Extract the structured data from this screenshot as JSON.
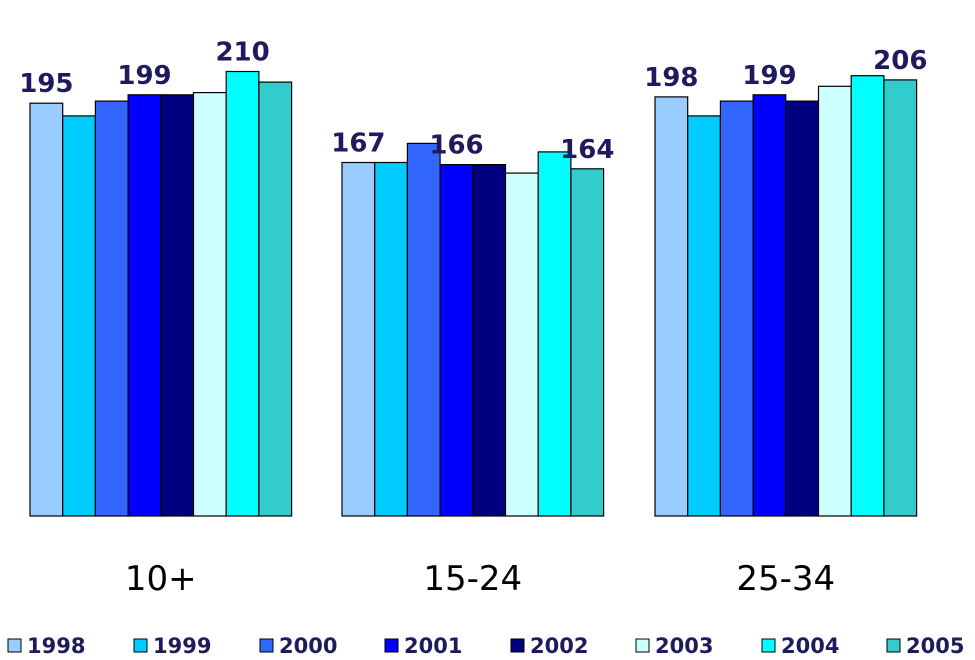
{
  "chart_data": {
    "type": "bar",
    "title": "",
    "xlabel": "",
    "ylabel": "",
    "ylim": [
      0,
      214
    ],
    "grid": false,
    "legend_position": "bottom",
    "categories": [
      "10+",
      "15-24",
      "25-34"
    ],
    "series": [
      {
        "name": "1998",
        "color": "#99ccff",
        "values": [
          195,
          167,
          198
        ]
      },
      {
        "name": "1999",
        "color": "#00ccff",
        "values": [
          189,
          167,
          189
        ]
      },
      {
        "name": "2000",
        "color": "#3366ff",
        "values": [
          196,
          176,
          196
        ]
      },
      {
        "name": "2001",
        "color": "#0000ff",
        "values": [
          199,
          166,
          199
        ]
      },
      {
        "name": "2002",
        "color": "#000080",
        "values": [
          199,
          166,
          196
        ]
      },
      {
        "name": "2003",
        "color": "#ccffff",
        "values": [
          200,
          162,
          203
        ]
      },
      {
        "name": "2004",
        "color": "#00ffff",
        "values": [
          210,
          172,
          208
        ]
      },
      {
        "name": "2005",
        "color": "#33cccc",
        "values": [
          205,
          164,
          206
        ]
      }
    ],
    "data_labels": [
      {
        "category": 0,
        "series": 0,
        "text": "195"
      },
      {
        "category": 0,
        "series": 3,
        "text": "199"
      },
      {
        "category": 0,
        "series": 6,
        "text": "210"
      },
      {
        "category": 1,
        "series": 0,
        "text": "167"
      },
      {
        "category": 1,
        "series": 3,
        "text": "166"
      },
      {
        "category": 1,
        "series": 7,
        "text": "164"
      },
      {
        "category": 2,
        "series": 0,
        "text": "198"
      },
      {
        "category": 2,
        "series": 3,
        "text": "199"
      },
      {
        "category": 2,
        "series": 7,
        "text": "206"
      }
    ]
  }
}
